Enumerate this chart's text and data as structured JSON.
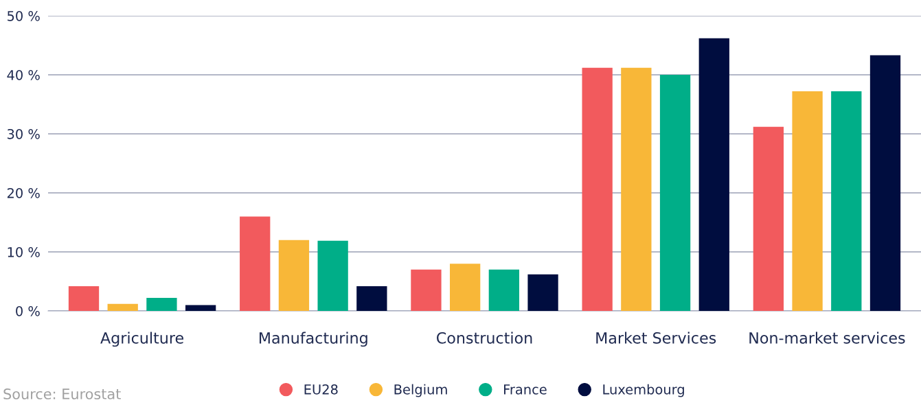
{
  "chart_data": {
    "type": "bar",
    "categories": [
      "Agriculture",
      "Manufacturing",
      "Construction",
      "Market Services",
      "Non-market services"
    ],
    "series": [
      {
        "name": "EU28",
        "color": "#f25a5d",
        "values": [
          4.2,
          16.0,
          7.0,
          41.2,
          31.2
        ]
      },
      {
        "name": "Belgium",
        "color": "#f8b738",
        "values": [
          1.2,
          12.0,
          8.0,
          41.2,
          37.2
        ]
      },
      {
        "name": "France",
        "color": "#00ae88",
        "values": [
          2.2,
          11.9,
          7.0,
          40.0,
          37.2
        ]
      },
      {
        "name": "Luxembourg",
        "color": "#000d3f",
        "values": [
          1.0,
          4.2,
          6.2,
          46.2,
          43.3
        ]
      }
    ],
    "ylim": [
      0,
      50
    ],
    "yticks": [
      {
        "value": 0,
        "label": "0 %"
      },
      {
        "value": 10,
        "label": "10 %"
      },
      {
        "value": 20,
        "label": "20 %"
      },
      {
        "value": 30,
        "label": "30 %"
      },
      {
        "value": 40,
        "label": "40 %"
      },
      {
        "value": 50,
        "label": "50 %"
      }
    ],
    "grid": "y",
    "legend": "bottom",
    "marker": "circle",
    "annotations": [
      "Source: Eurostat"
    ]
  }
}
